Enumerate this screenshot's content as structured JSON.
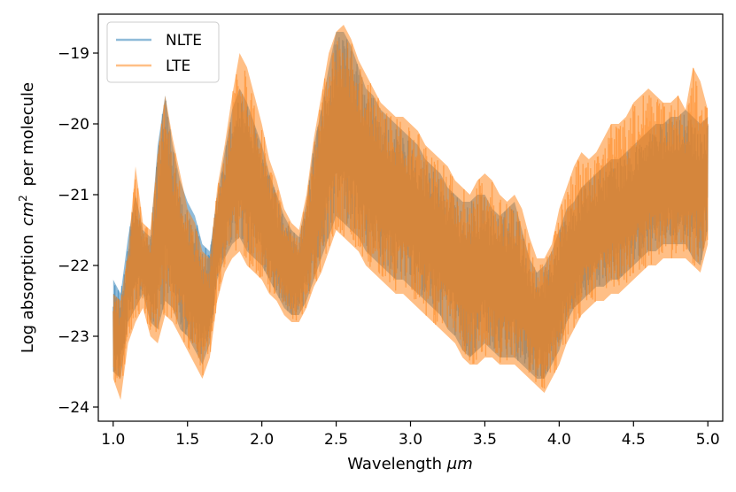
{
  "chart_data": {
    "type": "line",
    "title": "",
    "xlabel": "Wavelength",
    "xlabel_unit": "μm",
    "ylabel_prefix": "Log absorption",
    "ylabel_unit_base": "cm",
    "ylabel_unit_exp": "2",
    "ylabel_suffix": "per molecule",
    "xlim": [
      0.9,
      5.1
    ],
    "ylim": [
      -24.2,
      -18.45
    ],
    "xticks": [
      1.0,
      1.5,
      2.0,
      2.5,
      3.0,
      3.5,
      4.0,
      4.5,
      5.0
    ],
    "xtick_labels": [
      "1.0",
      "1.5",
      "2.0",
      "2.5",
      "3.0",
      "3.5",
      "4.0",
      "4.5",
      "5.0"
    ],
    "yticks": [
      -24,
      -23,
      -22,
      -21,
      -20,
      -19
    ],
    "ytick_labels": [
      "−24",
      "−23",
      "−22",
      "−21",
      "−20",
      "−19"
    ],
    "grid": false,
    "legend_position": "top-left",
    "series": [
      {
        "name": "NLTE",
        "color": "#1f77b4",
        "x": [
          1.0,
          1.05,
          1.1,
          1.15,
          1.2,
          1.25,
          1.3,
          1.35,
          1.4,
          1.45,
          1.5,
          1.55,
          1.6,
          1.65,
          1.7,
          1.75,
          1.8,
          1.85,
          1.9,
          1.95,
          2.0,
          2.05,
          2.1,
          2.15,
          2.2,
          2.25,
          2.3,
          2.35,
          2.4,
          2.45,
          2.5,
          2.55,
          2.6,
          2.65,
          2.7,
          2.75,
          2.8,
          2.85,
          2.9,
          2.95,
          3.0,
          3.05,
          3.1,
          3.15,
          3.2,
          3.25,
          3.3,
          3.35,
          3.4,
          3.45,
          3.5,
          3.55,
          3.6,
          3.65,
          3.7,
          3.75,
          3.8,
          3.85,
          3.9,
          3.95,
          4.0,
          4.05,
          4.1,
          4.15,
          4.2,
          4.25,
          4.3,
          4.35,
          4.4,
          4.45,
          4.5,
          4.55,
          4.6,
          4.65,
          4.7,
          4.75,
          4.8,
          4.85,
          4.9,
          4.95,
          5.0
        ],
        "upper": [
          -22.2,
          -22.4,
          -21.6,
          -21.0,
          -21.5,
          -21.6,
          -20.3,
          -19.6,
          -20.3,
          -20.8,
          -21.1,
          -21.3,
          -21.7,
          -21.8,
          -21.0,
          -20.4,
          -19.8,
          -19.5,
          -19.7,
          -20.0,
          -20.3,
          -20.7,
          -21.0,
          -21.3,
          -21.5,
          -21.6,
          -21.1,
          -20.3,
          -19.8,
          -19.2,
          -18.7,
          -18.7,
          -18.9,
          -19.2,
          -19.5,
          -19.6,
          -19.8,
          -19.9,
          -20.0,
          -20.1,
          -20.2,
          -20.3,
          -20.5,
          -20.6,
          -20.7,
          -20.9,
          -21.0,
          -21.1,
          -21.1,
          -21.0,
          -21.0,
          -21.2,
          -21.3,
          -21.2,
          -21.1,
          -21.5,
          -21.9,
          -22.1,
          -22.0,
          -21.8,
          -21.5,
          -21.2,
          -21.1,
          -20.9,
          -20.8,
          -20.7,
          -20.6,
          -20.5,
          -20.5,
          -20.4,
          -20.3,
          -20.2,
          -20.1,
          -20.0,
          -20.0,
          -19.9,
          -19.9,
          -19.8,
          -19.9,
          -20.0,
          -19.9
        ],
        "lower": [
          -23.5,
          -23.6,
          -22.8,
          -22.6,
          -22.4,
          -22.8,
          -22.9,
          -22.5,
          -22.6,
          -22.9,
          -23.0,
          -23.2,
          -23.4,
          -23.1,
          -22.2,
          -21.9,
          -21.7,
          -21.6,
          -21.8,
          -21.9,
          -22.0,
          -22.2,
          -22.4,
          -22.6,
          -22.7,
          -22.7,
          -22.5,
          -22.2,
          -21.9,
          -21.6,
          -21.3,
          -21.4,
          -21.5,
          -21.6,
          -21.8,
          -21.9,
          -22.0,
          -22.1,
          -22.2,
          -22.2,
          -22.3,
          -22.4,
          -22.5,
          -22.6,
          -22.7,
          -22.9,
          -23.0,
          -23.2,
          -23.3,
          -23.2,
          -23.1,
          -23.2,
          -23.3,
          -23.3,
          -23.3,
          -23.4,
          -23.5,
          -23.6,
          -23.6,
          -23.4,
          -23.2,
          -22.8,
          -22.6,
          -22.5,
          -22.4,
          -22.3,
          -22.3,
          -22.2,
          -22.2,
          -22.1,
          -22.0,
          -21.9,
          -21.8,
          -21.8,
          -21.7,
          -21.7,
          -21.7,
          -21.7,
          -21.9,
          -22.0,
          -21.5
        ]
      },
      {
        "name": "LTE",
        "color": "#ff7f0e",
        "x": [
          1.0,
          1.05,
          1.1,
          1.15,
          1.2,
          1.25,
          1.3,
          1.35,
          1.4,
          1.45,
          1.5,
          1.55,
          1.6,
          1.65,
          1.7,
          1.75,
          1.8,
          1.85,
          1.9,
          1.95,
          2.0,
          2.05,
          2.1,
          2.15,
          2.2,
          2.25,
          2.3,
          2.35,
          2.4,
          2.45,
          2.5,
          2.55,
          2.6,
          2.65,
          2.7,
          2.75,
          2.8,
          2.85,
          2.9,
          2.95,
          3.0,
          3.05,
          3.1,
          3.15,
          3.2,
          3.25,
          3.3,
          3.35,
          3.4,
          3.45,
          3.5,
          3.55,
          3.6,
          3.65,
          3.7,
          3.75,
          3.8,
          3.85,
          3.9,
          3.95,
          4.0,
          4.05,
          4.1,
          4.15,
          4.2,
          4.25,
          4.3,
          4.35,
          4.4,
          4.45,
          4.5,
          4.55,
          4.6,
          4.65,
          4.7,
          4.75,
          4.8,
          4.85,
          4.9,
          4.95,
          5.0
        ],
        "upper": [
          -22.4,
          -22.5,
          -21.8,
          -20.6,
          -21.4,
          -21.5,
          -20.4,
          -19.6,
          -20.2,
          -20.7,
          -21.2,
          -21.4,
          -21.8,
          -21.9,
          -20.9,
          -20.3,
          -19.6,
          -19.0,
          -19.2,
          -19.6,
          -20.0,
          -20.5,
          -20.8,
          -21.2,
          -21.4,
          -21.5,
          -21.0,
          -20.2,
          -19.6,
          -19.0,
          -18.7,
          -18.6,
          -18.8,
          -19.1,
          -19.3,
          -19.5,
          -19.7,
          -19.8,
          -19.9,
          -19.9,
          -20.0,
          -20.1,
          -20.3,
          -20.4,
          -20.5,
          -20.6,
          -20.8,
          -20.9,
          -21.0,
          -20.8,
          -20.7,
          -20.8,
          -21.0,
          -21.1,
          -21.0,
          -21.2,
          -21.6,
          -21.9,
          -21.9,
          -21.7,
          -21.2,
          -20.9,
          -20.6,
          -20.4,
          -20.5,
          -20.4,
          -20.2,
          -20.0,
          -20.0,
          -19.9,
          -19.7,
          -19.6,
          -19.5,
          -19.6,
          -19.7,
          -19.7,
          -19.6,
          -19.8,
          -19.2,
          -19.4,
          -19.8
        ],
        "lower": [
          -23.6,
          -23.9,
          -23.1,
          -22.8,
          -22.6,
          -23.0,
          -23.1,
          -22.7,
          -22.8,
          -23.0,
          -23.2,
          -23.4,
          -23.6,
          -23.3,
          -22.5,
          -22.1,
          -21.9,
          -21.8,
          -22.0,
          -22.1,
          -22.2,
          -22.4,
          -22.5,
          -22.7,
          -22.8,
          -22.8,
          -22.6,
          -22.3,
          -22.1,
          -21.8,
          -21.5,
          -21.6,
          -21.7,
          -21.8,
          -22.0,
          -22.1,
          -22.2,
          -22.3,
          -22.4,
          -22.4,
          -22.5,
          -22.6,
          -22.7,
          -22.8,
          -22.9,
          -23.0,
          -23.1,
          -23.3,
          -23.4,
          -23.4,
          -23.3,
          -23.3,
          -23.4,
          -23.4,
          -23.4,
          -23.5,
          -23.6,
          -23.7,
          -23.8,
          -23.6,
          -23.4,
          -23.1,
          -22.9,
          -22.7,
          -22.6,
          -22.5,
          -22.5,
          -22.4,
          -22.4,
          -22.3,
          -22.2,
          -22.1,
          -22.0,
          -22.0,
          -21.9,
          -21.9,
          -21.9,
          -21.9,
          -22.0,
          -22.1,
          -21.7
        ]
      }
    ]
  }
}
